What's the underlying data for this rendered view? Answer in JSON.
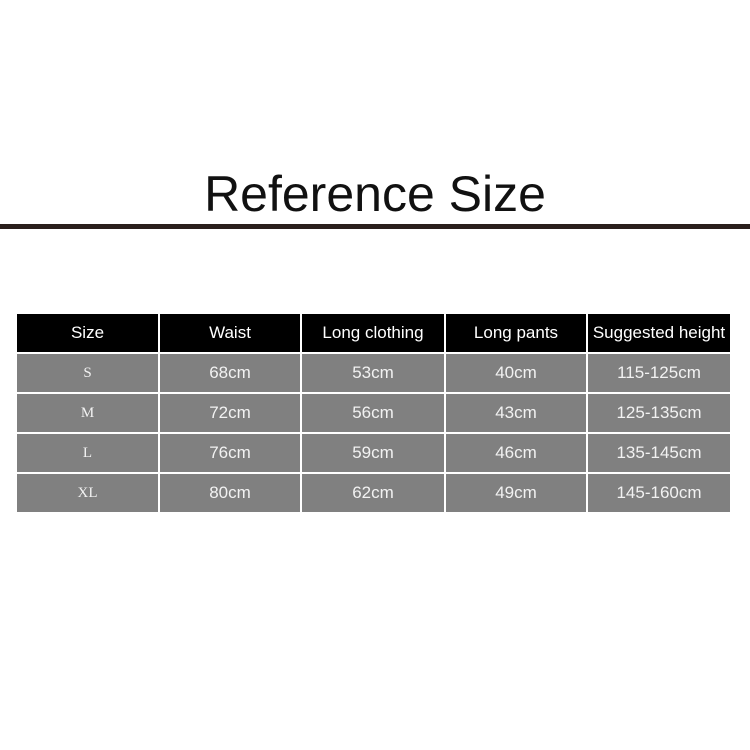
{
  "title": "Reference Size",
  "table": {
    "headers": [
      "Size",
      "Waist",
      "Long clothing",
      "Long pants",
      "Suggested height"
    ],
    "rows": [
      [
        "S",
        "68cm",
        "53cm",
        "40cm",
        "115-125cm"
      ],
      [
        "M",
        "72cm",
        "56cm",
        "43cm",
        "125-135cm"
      ],
      [
        "L",
        "76cm",
        "59cm",
        "46cm",
        "135-145cm"
      ],
      [
        "XL",
        "80cm",
        "62cm",
        "49cm",
        "145-160cm"
      ]
    ]
  },
  "colors": {
    "header_bg": "#000000",
    "cell_bg": "#808080",
    "rule": "#2a1f1c"
  }
}
